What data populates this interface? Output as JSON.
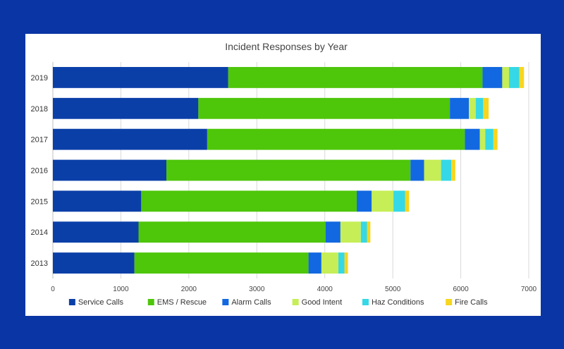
{
  "chart_data": {
    "type": "bar",
    "orientation": "horizontal",
    "stacked": true,
    "title": "Incident Responses by Year",
    "xlabel": "",
    "ylabel": "",
    "xlim": [
      0,
      7000
    ],
    "xticks": [
      0,
      1000,
      2000,
      3000,
      4000,
      5000,
      6000,
      7000
    ],
    "grid": true,
    "legend_position": "bottom",
    "categories": [
      "2019",
      "2018",
      "2017",
      "2016",
      "2015",
      "2014",
      "2013"
    ],
    "series": [
      {
        "name": "Service Calls",
        "color": "#0b3fa8",
        "values": [
          2580,
          2140,
          2270,
          1670,
          1300,
          1260,
          1200
        ]
      },
      {
        "name": "EMS / Rescue",
        "color": "#4ec60a",
        "values": [
          3740,
          3700,
          3790,
          3590,
          3170,
          2750,
          2560
        ]
      },
      {
        "name": "Alarm Calls",
        "color": "#1268e0",
        "values": [
          290,
          280,
          220,
          200,
          220,
          220,
          190
        ]
      },
      {
        "name": "Good Intent",
        "color": "#c6ee56",
        "values": [
          100,
          100,
          80,
          250,
          320,
          300,
          250
        ]
      },
      {
        "name": "Haz Conditions",
        "color": "#35d8e6",
        "values": [
          150,
          110,
          120,
          150,
          170,
          90,
          90
        ]
      },
      {
        "name": "Fire Calls",
        "color": "#f6d61f",
        "values": [
          70,
          80,
          60,
          60,
          60,
          50,
          50
        ]
      }
    ]
  }
}
